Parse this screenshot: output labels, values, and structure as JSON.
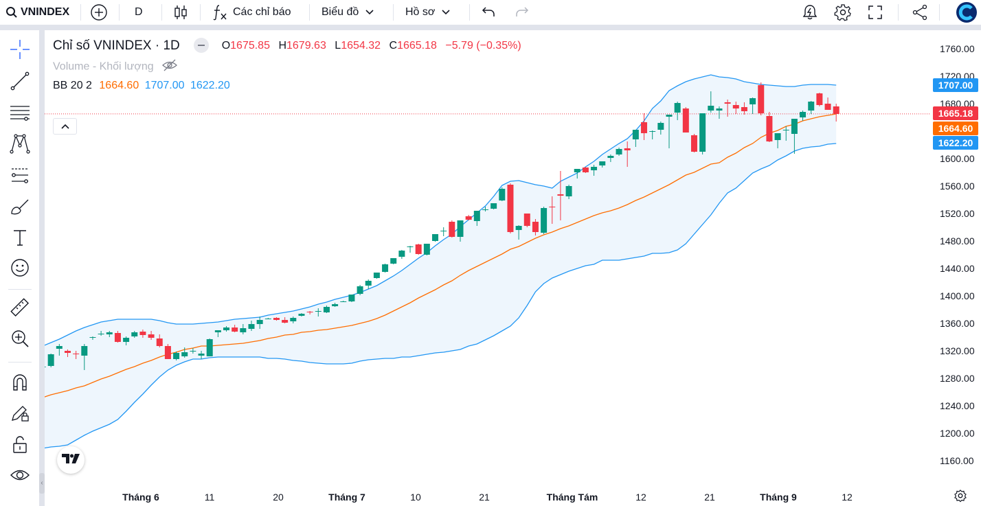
{
  "toolbar": {
    "symbol": "VNINDEX",
    "interval": "D",
    "indicators_label": "Các chỉ báo",
    "chart_type_label": "Biểu đồ",
    "profile_label": "Hồ sơ"
  },
  "legend": {
    "title": "Chỉ số VNINDEX · 1D",
    "o_label": "O",
    "o_value": "1675.85",
    "h_label": "H",
    "h_value": "1679.63",
    "l_label": "L",
    "l_value": "1654.32",
    "c_label": "C",
    "c_value": "1665.18",
    "change": "−5.79 (−0.35%)",
    "volume_label": "Volume - Khối lượng",
    "bb_label": "BB 20 2",
    "bb_basis": "1664.60",
    "bb_upper": "1707.00",
    "bb_lower": "1622.20"
  },
  "price_tags": {
    "upper": "1707.00",
    "last": "1665.18",
    "basis": "1664.60",
    "lower": "1622.20"
  },
  "colors": {
    "up": "#089981",
    "down": "#f23645",
    "basis": "#ff6d00",
    "band": "#2196f3",
    "band_fill": "#eef6fd",
    "text_down": "#f23645"
  },
  "icons": [
    "search-icon",
    "plus-circle-icon",
    "candles-icon",
    "fx-icon",
    "chevron-down-icon",
    "undo-icon",
    "redo-icon",
    "alert-icon",
    "gear-icon",
    "fullscreen-icon",
    "share-icon",
    "logo-icon",
    "crosshair-icon",
    "trend-line-icon",
    "fib-icon",
    "pattern-icon",
    "forecast-icon",
    "brush-icon",
    "text-icon",
    "emoji-icon",
    "ruler-icon",
    "zoom-in-icon",
    "magnet-icon",
    "lock-draw-icon",
    "unlock-icon",
    "eye-icon",
    "tradingview-logo-icon",
    "settings-icon"
  ],
  "chart_data": {
    "type": "candlestick",
    "y_axis_ticks": [
      "1760.00",
      "1720.00",
      "1680.00",
      "1640.00",
      "1600.00",
      "1560.00",
      "1520.00",
      "1480.00",
      "1440.00",
      "1400.00",
      "1360.00",
      "1320.00",
      "1280.00",
      "1240.00",
      "1200.00",
      "1160.00"
    ],
    "x_axis_ticks": [
      "Tháng 6",
      "11",
      "20",
      "Tháng 7",
      "10",
      "21",
      "Tháng Tám",
      "12",
      "21",
      "Tháng 9",
      "12"
    ],
    "ylim": [
      1125,
      1785
    ],
    "candles": [
      [
        1297,
        1300,
        1294,
        1297
      ],
      [
        1298,
        1316,
        1296,
        1315
      ],
      [
        1323,
        1330,
        1313,
        1327
      ],
      [
        1320,
        1322,
        1311,
        1317
      ],
      [
        1316,
        1320,
        1308,
        1315
      ],
      [
        1313,
        1330,
        1292,
        1327
      ],
      [
        1339,
        1341,
        1336,
        1340
      ],
      [
        1345,
        1349,
        1342,
        1345
      ],
      [
        1344,
        1349,
        1340,
        1347
      ],
      [
        1346,
        1349,
        1332,
        1333
      ],
      [
        1333,
        1341,
        1328,
        1339
      ],
      [
        1341,
        1349,
        1339,
        1347
      ],
      [
        1348,
        1351,
        1339,
        1343
      ],
      [
        1344,
        1349,
        1336,
        1339
      ],
      [
        1338,
        1344,
        1325,
        1327
      ],
      [
        1327,
        1330,
        1308,
        1308
      ],
      [
        1308,
        1319,
        1306,
        1317
      ],
      [
        1312,
        1325,
        1310,
        1318
      ],
      [
        1319,
        1324,
        1316,
        1320
      ],
      [
        1313,
        1320,
        1308,
        1316
      ],
      [
        1312,
        1338,
        1312,
        1337
      ],
      [
        1347,
        1350,
        1340,
        1350
      ],
      [
        1350,
        1356,
        1348,
        1354
      ],
      [
        1354,
        1358,
        1347,
        1348
      ],
      [
        1347,
        1359,
        1344,
        1353
      ],
      [
        1352,
        1364,
        1349,
        1359
      ],
      [
        1359,
        1370,
        1352,
        1365
      ],
      [
        1367,
        1368,
        1366,
        1367
      ],
      [
        1368,
        1369,
        1364,
        1365
      ],
      [
        1365,
        1369,
        1360,
        1361
      ],
      [
        1363,
        1370,
        1360,
        1368
      ],
      [
        1371,
        1375,
        1370,
        1374
      ],
      [
        1377,
        1378,
        1373,
        1376
      ],
      [
        1378,
        1382,
        1370,
        1378
      ],
      [
        1376,
        1386,
        1375,
        1384
      ],
      [
        1385,
        1390,
        1384,
        1388
      ],
      [
        1392,
        1393,
        1391,
        1392
      ],
      [
        1392,
        1401,
        1391,
        1402
      ],
      [
        1403,
        1416,
        1401,
        1414
      ],
      [
        1415,
        1424,
        1410,
        1422
      ],
      [
        1426,
        1434,
        1425,
        1434
      ],
      [
        1435,
        1447,
        1434,
        1446
      ],
      [
        1447,
        1455,
        1446,
        1455
      ],
      [
        1457,
        1467,
        1454,
        1466
      ],
      [
        1471,
        1473,
        1463,
        1472
      ],
      [
        1475,
        1476,
        1460,
        1461
      ],
      [
        1460,
        1476,
        1459,
        1476
      ],
      [
        1480,
        1490,
        1479,
        1490
      ],
      [
        1495,
        1500,
        1487,
        1495
      ],
      [
        1508,
        1510,
        1485,
        1486
      ],
      [
        1486,
        1508,
        1479,
        1510
      ],
      [
        1516,
        1518,
        1510,
        1511
      ],
      [
        1509,
        1524,
        1502,
        1524
      ],
      [
        1526,
        1530,
        1523,
        1526
      ],
      [
        1527,
        1535,
        1526,
        1535
      ],
      [
        1539,
        1558,
        1538,
        1556
      ],
      [
        1562,
        1564,
        1491,
        1493
      ],
      [
        1496,
        1503,
        1482,
        1502
      ],
      [
        1520,
        1520,
        1500,
        1502
      ],
      [
        1508,
        1512,
        1488,
        1493
      ],
      [
        1492,
        1530,
        1490,
        1528
      ],
      [
        1530,
        1545,
        1505,
        1529
      ],
      [
        1548,
        1582,
        1510,
        1546
      ],
      [
        1545,
        1562,
        1541,
        1560
      ],
      [
        1580,
        1585,
        1571,
        1585
      ],
      [
        1587,
        1588,
        1579,
        1580
      ],
      [
        1583,
        1591,
        1575,
        1588
      ],
      [
        1590,
        1596,
        1587,
        1596
      ],
      [
        1601,
        1606,
        1595,
        1604
      ],
      [
        1606,
        1616,
        1604,
        1614
      ],
      [
        1615,
        1625,
        1588,
        1612
      ],
      [
        1628,
        1642,
        1617,
        1642
      ],
      [
        1653,
        1666,
        1627,
        1637
      ],
      [
        1640,
        1641,
        1628,
        1640
      ],
      [
        1642,
        1654,
        1635,
        1652
      ],
      [
        1661,
        1663,
        1615,
        1664
      ],
      [
        1667,
        1683,
        1656,
        1681
      ],
      [
        1673,
        1675,
        1639,
        1638
      ],
      [
        1634,
        1636,
        1609,
        1610
      ],
      [
        1610,
        1665,
        1606,
        1666
      ],
      [
        1670,
        1698,
        1667,
        1677
      ],
      [
        1670,
        1676,
        1658,
        1673
      ],
      [
        1682,
        1686,
        1661,
        1680
      ],
      [
        1678,
        1683,
        1665,
        1673
      ],
      [
        1675,
        1682,
        1664,
        1669
      ],
      [
        1679,
        1689,
        1665,
        1688
      ],
      [
        1707,
        1711,
        1663,
        1666
      ],
      [
        1662,
        1668,
        1624,
        1625
      ],
      [
        1627,
        1637,
        1615,
        1637
      ],
      [
        1641,
        1647,
        1626,
        1642
      ],
      [
        1636,
        1657,
        1607,
        1658
      ],
      [
        1660,
        1670,
        1655,
        1668
      ],
      [
        1670,
        1684,
        1665,
        1683
      ],
      [
        1695,
        1696,
        1676,
        1678
      ],
      [
        1680,
        1689,
        1671,
        1671
      ],
      [
        1676,
        1680,
        1654,
        1665
      ]
    ],
    "bb_basis": [
      1252,
      1256,
      1259,
      1262,
      1266,
      1269,
      1274,
      1279,
      1283,
      1288,
      1293,
      1297,
      1302,
      1306,
      1311,
      1315,
      1318,
      1322,
      1324,
      1327,
      1327,
      1328,
      1329,
      1330,
      1331,
      1333,
      1335,
      1338,
      1340,
      1343,
      1344,
      1347,
      1348,
      1350,
      1351,
      1353,
      1355,
      1357,
      1360,
      1363,
      1367,
      1372,
      1378,
      1384,
      1390,
      1397,
      1403,
      1409,
      1416,
      1422,
      1430,
      1437,
      1443,
      1449,
      1455,
      1461,
      1468,
      1472,
      1478,
      1484,
      1489,
      1493,
      1498,
      1502,
      1507,
      1512,
      1517,
      1521,
      1524,
      1528,
      1533,
      1539,
      1544,
      1550,
      1556,
      1562,
      1569,
      1576,
      1580,
      1586,
      1592,
      1594,
      1602,
      1608,
      1616,
      1622,
      1631,
      1637,
      1641,
      1647,
      1650,
      1655,
      1658,
      1661,
      1663,
      1665
    ],
    "bb_upper": [
      1327,
      1332,
      1337,
      1343,
      1349,
      1354,
      1358,
      1362,
      1364,
      1366,
      1366,
      1366,
      1366,
      1366,
      1364,
      1361,
      1359,
      1359,
      1359,
      1360,
      1361,
      1362,
      1364,
      1366,
      1367,
      1368,
      1369,
      1372,
      1374,
      1376,
      1378,
      1381,
      1384,
      1388,
      1391,
      1395,
      1398,
      1401,
      1405,
      1410,
      1415,
      1422,
      1429,
      1437,
      1446,
      1455,
      1463,
      1473,
      1482,
      1490,
      1501,
      1511,
      1521,
      1531,
      1545,
      1561,
      1567,
      1568,
      1565,
      1562,
      1560,
      1557,
      1567,
      1573,
      1579,
      1588,
      1596,
      1606,
      1614,
      1622,
      1629,
      1641,
      1655,
      1673,
      1684,
      1699,
      1706,
      1712,
      1716,
      1719,
      1722,
      1719,
      1718,
      1716,
      1712,
      1710,
      1708,
      1707,
      1706,
      1705,
      1705,
      1707,
      1708,
      1708,
      1708,
      1707
    ],
    "bb_upper_extra": [],
    "bb_lower": [
      1178,
      1180,
      1181,
      1183,
      1190,
      1197,
      1203,
      1208,
      1213,
      1220,
      1232,
      1245,
      1257,
      1270,
      1282,
      1292,
      1299,
      1304,
      1308,
      1308,
      1310,
      1311,
      1311,
      1311,
      1311,
      1311,
      1311,
      1309,
      1309,
      1308,
      1306,
      1305,
      1303,
      1302,
      1301,
      1301,
      1301,
      1302,
      1305,
      1307,
      1308,
      1309,
      1309,
      1311,
      1311,
      1313,
      1315,
      1317,
      1318,
      1320,
      1322,
      1327,
      1330,
      1336,
      1342,
      1349,
      1356,
      1368,
      1386,
      1406,
      1418,
      1426,
      1431,
      1436,
      1440,
      1444,
      1446,
      1452,
      1452,
      1452,
      1454,
      1456,
      1458,
      1462,
      1462,
      1463,
      1467,
      1476,
      1490,
      1504,
      1518,
      1535,
      1550,
      1557,
      1568,
      1579,
      1585,
      1590,
      1598,
      1604,
      1611,
      1615,
      1617,
      1618,
      1621,
      1622
    ]
  }
}
